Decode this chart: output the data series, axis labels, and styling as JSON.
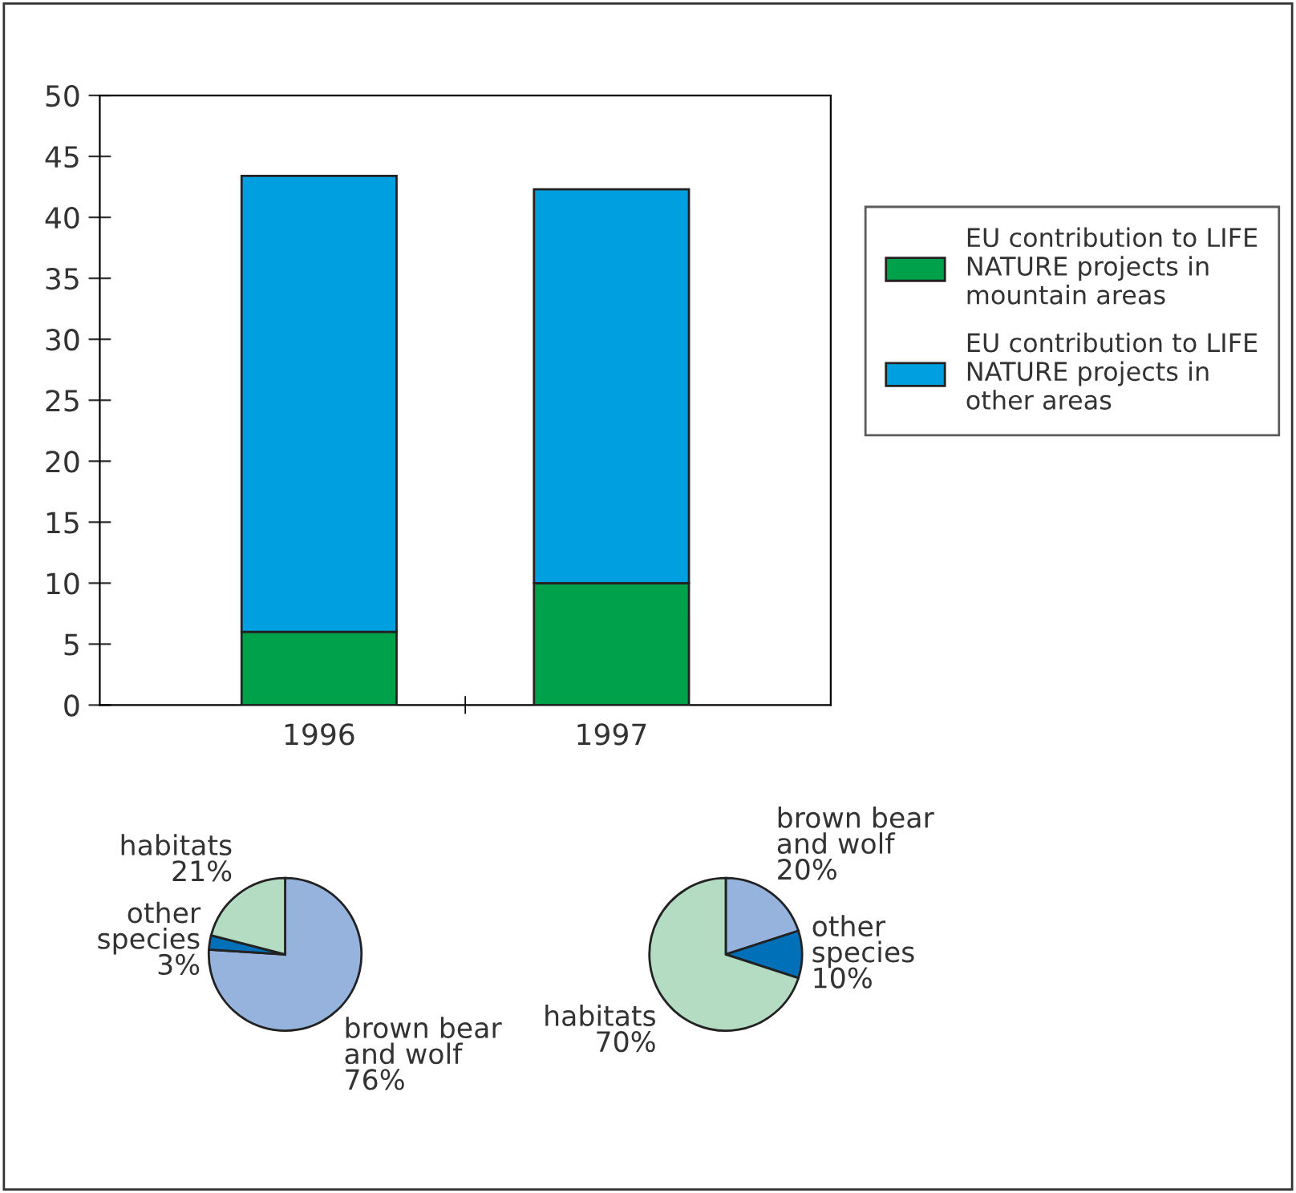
{
  "chart_data": [
    {
      "type": "bar",
      "stacked": true,
      "categories": [
        "1996",
        "1997"
      ],
      "ylim": [
        0,
        50
      ],
      "yticks": [
        0,
        5,
        10,
        15,
        20,
        25,
        30,
        35,
        40,
        45,
        50
      ],
      "grid": false,
      "legend": "right",
      "series": [
        {
          "name": "EU contribution to LIFE\nNATURE projects in\nmountain areas",
          "color": "#00a14b",
          "values": [
            6,
            10
          ]
        },
        {
          "name": "EU contribution to LIFE\nNATURE projects in\nother areas",
          "color": "#00a0e0",
          "values": [
            37.4,
            32.3
          ]
        }
      ]
    },
    {
      "type": "pie",
      "categories": [
        "brown bear\nand wolf",
        "other\nspecies",
        "habitats"
      ],
      "values": [
        76,
        3,
        21
      ],
      "value_labels": [
        "76%",
        "3%",
        "21%"
      ],
      "colors": [
        "#95b3dd",
        "#0070b8",
        "#b3dcc2"
      ]
    },
    {
      "type": "pie",
      "categories": [
        "brown bear\nand wolf",
        "other\nspecies",
        "habitats"
      ],
      "values": [
        20,
        10,
        70
      ],
      "value_labels": [
        "20%",
        "10%",
        "70%"
      ],
      "colors": [
        "#95b3dd",
        "#0070b8",
        "#b3dcc2"
      ]
    }
  ]
}
